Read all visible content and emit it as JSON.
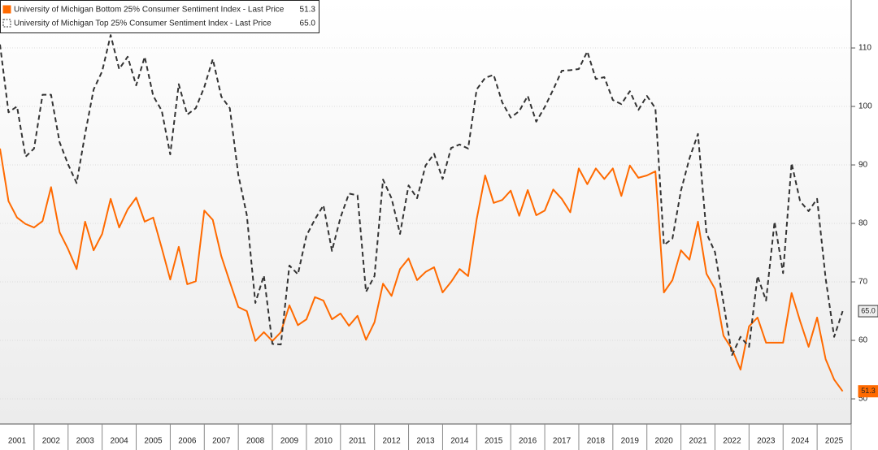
{
  "chart_data": {
    "type": "line",
    "x": [
      2000.5,
      2000.75,
      2001,
      2001.25,
      2001.5,
      2001.75,
      2002,
      2002.25,
      2002.5,
      2002.75,
      2003,
      2003.25,
      2003.5,
      2003.75,
      2004,
      2004.25,
      2004.5,
      2004.75,
      2005,
      2005.25,
      2005.5,
      2005.75,
      2006,
      2006.25,
      2006.5,
      2006.75,
      2007,
      2007.25,
      2007.5,
      2007.75,
      2008,
      2008.25,
      2008.5,
      2008.75,
      2009,
      2009.25,
      2009.5,
      2009.75,
      2010,
      2010.25,
      2010.5,
      2010.75,
      2011,
      2011.25,
      2011.5,
      2011.75,
      2012,
      2012.25,
      2012.5,
      2012.75,
      2013,
      2013.25,
      2013.5,
      2013.75,
      2014,
      2014.25,
      2014.5,
      2014.75,
      2015,
      2015.25,
      2015.5,
      2015.75,
      2016,
      2016.25,
      2016.5,
      2016.75,
      2017,
      2017.25,
      2017.5,
      2017.75,
      2018,
      2018.25,
      2018.5,
      2018.75,
      2019,
      2019.25,
      2019.5,
      2019.75,
      2020,
      2020.25,
      2020.5,
      2020.75,
      2021,
      2021.25,
      2021.5,
      2021.75,
      2022,
      2022.25,
      2022.5,
      2022.75,
      2023,
      2023.25,
      2023.5,
      2023.75,
      2024,
      2024.25,
      2024.5,
      2024.75,
      2025,
      2025.25
    ],
    "series": [
      {
        "name": "University of Michigan Bottom 25% Consumer Sentiment Index - Last Price",
        "last_price_label": "51.3",
        "color": "#ff6a00",
        "dashed": false,
        "values": [
          92.8,
          83.8,
          81,
          79.9,
          79.3,
          80.4,
          86.2,
          78.5,
          75.6,
          72.2,
          80.3,
          75.4,
          78.2,
          84.2,
          79.3,
          82.4,
          84.4,
          80.3,
          81,
          75.8,
          70.4,
          76,
          69.6,
          70.1,
          82.2,
          80.6,
          74.4,
          70,
          65.7,
          65,
          59.9,
          61.4,
          59.9,
          61.4,
          66,
          62.6,
          63.6,
          67.4,
          66.8,
          63.6,
          64.6,
          62.5,
          64.2,
          60.1,
          63.1,
          69.7,
          67.6,
          72.2,
          74,
          70.3,
          71.7,
          72.5,
          68.2,
          70,
          72.2,
          71,
          80.7,
          88.2,
          83.5,
          84,
          85.6,
          81.3,
          85.7,
          81.4,
          82.2,
          85.8,
          84.2,
          81.9,
          89.4,
          86.7,
          89.4,
          87.6,
          89.4,
          84.7,
          89.9,
          87.8,
          88.2,
          88.9,
          68.2,
          70.3,
          75.4,
          73.8,
          80.3,
          71.4,
          68.8,
          60.8,
          58.5,
          55,
          62.4,
          63.9,
          59.6,
          59.6,
          59.6,
          68.1,
          63.3,
          58.9,
          63.9,
          56.8,
          53.3,
          51.3
        ]
      },
      {
        "name": "University of Michigan Top 25% Consumer Sentiment Index - Last Price",
        "last_price_label": "65.0",
        "color": "#333333",
        "dashed": true,
        "values": [
          110.6,
          99,
          100,
          91.4,
          92.8,
          102,
          102,
          93.9,
          90.1,
          86.9,
          95.3,
          102.9,
          106,
          112.2,
          106.4,
          108.5,
          103.6,
          108.5,
          101.8,
          99.3,
          91.8,
          103.8,
          98.6,
          99.7,
          103.3,
          108.1,
          101.7,
          99.7,
          88.3,
          81.4,
          66.4,
          71.1,
          59.4,
          59.3,
          72.8,
          71.3,
          77.9,
          80.7,
          83.1,
          75.3,
          81,
          85.1,
          84.8,
          68.3,
          71,
          87.5,
          84.3,
          78.2,
          86.5,
          84.3,
          89.9,
          91.9,
          87.6,
          92.9,
          93.5,
          92.8,
          102.9,
          104.9,
          105.4,
          100.7,
          98.1,
          99.2,
          101.8,
          97.4,
          99.9,
          102.9,
          106.1,
          106.2,
          106.4,
          109.4,
          104.7,
          105,
          101.1,
          100.4,
          102.6,
          99.4,
          101.8,
          99.7,
          76.3,
          77.4,
          85.6,
          91.1,
          95.3,
          78.3,
          75.1,
          66.4,
          57.5,
          60.6,
          58.9,
          71,
          66.8,
          80.3,
          71.5,
          90.3,
          83.8,
          82.1,
          84.2,
          70.6,
          60.6,
          65
        ]
      }
    ],
    "xlim": [
      2000.5,
      2025.5
    ],
    "xticks": [
      2001,
      2002,
      2003,
      2004,
      2005,
      2006,
      2007,
      2008,
      2009,
      2010,
      2011,
      2012,
      2013,
      2014,
      2015,
      2016,
      2017,
      2018,
      2019,
      2020,
      2021,
      2022,
      2023,
      2024,
      2025
    ],
    "ylim": [
      45.7,
      118.2
    ],
    "yticks": [
      50,
      60,
      70,
      80,
      90,
      100,
      110
    ],
    "grid": true,
    "legend": "top-left"
  }
}
